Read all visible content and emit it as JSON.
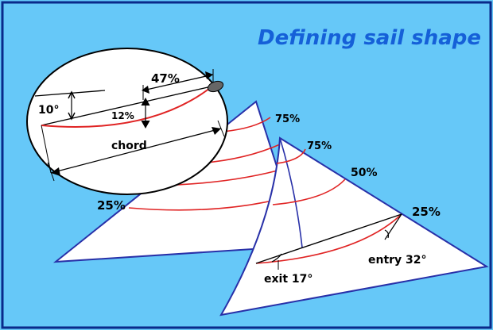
{
  "title": "Defining sail shape",
  "inset": {
    "angle_label": "10°",
    "draft_position_label": "47%",
    "camber_label": "12%",
    "chord_label": "chord"
  },
  "main_sail": {
    "labels": {
      "top": "75%",
      "bottom": "25%"
    }
  },
  "jib": {
    "labels": {
      "top": "75%",
      "middle": "50%",
      "bottom": "25%"
    },
    "entry_label": "entry 32°",
    "exit_label": "exit 17°"
  },
  "colors": {
    "background": "#66c8f8",
    "frame": "#0a2a8a",
    "sail_outline": "#2830a8",
    "draft_lines": "#e02424",
    "title": "#1560d8"
  }
}
